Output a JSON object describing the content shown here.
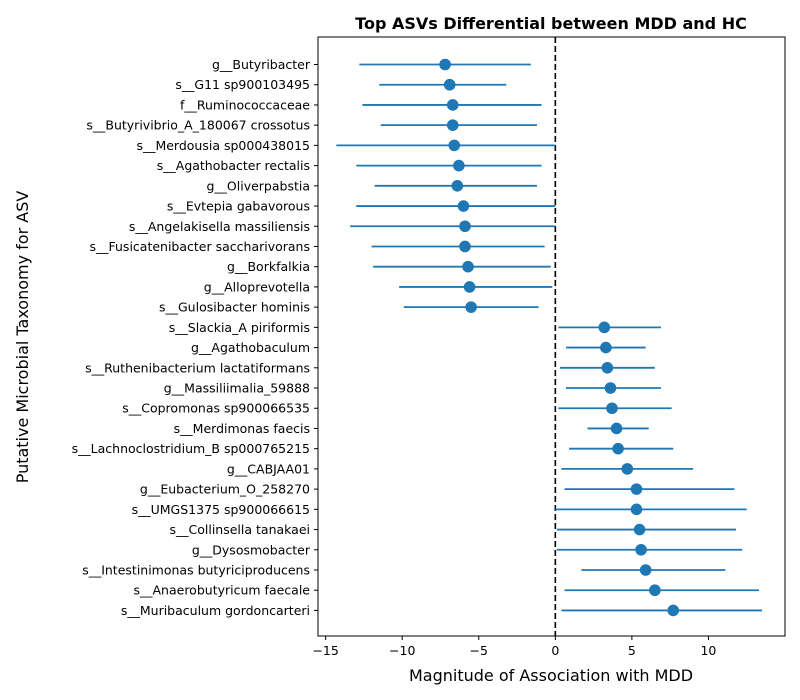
{
  "chart_data": {
    "type": "scatter",
    "title": "Top ASVs Differential between MDD and HC",
    "xlabel": "Magnitude of Association with MDD",
    "ylabel": "Putative Microbial Taxonomy for ASV",
    "xlim": [
      -15.5,
      15
    ],
    "xticks": [
      {
        "value": -15,
        "label": "−15"
      },
      {
        "value": -10,
        "label": "−10"
      },
      {
        "value": -5,
        "label": "−5"
      },
      {
        "value": 0,
        "label": "0"
      },
      {
        "value": 5,
        "label": "5"
      },
      {
        "value": 10,
        "label": "10"
      }
    ],
    "reference_line": {
      "x": 0,
      "style": "dashed",
      "color": "#000000"
    },
    "grid": false,
    "legend": "none",
    "marker_color": "#1f77b4",
    "categories": [
      "g__Butyribacter",
      "s__G11 sp900103495",
      "f__Ruminococcaceae",
      "s__Butyrivibrio_A_180067 crossotus",
      "s__Merdousia sp000438015",
      "s__Agathobacter rectalis",
      "g__Oliverpabstia",
      "s__Evtepia gabavorous",
      "s__Angelakisella massiliensis",
      "s__Fusicatenibacter saccharivorans",
      "g__Borkfalkia",
      "g__Alloprevotella",
      "s__Gulosibacter hominis",
      "s__Slackia_A piriformis",
      "g__Agathobaculum",
      "s__Ruthenibacterium lactatiformans",
      "g__Massiliimalia_59888",
      "s__Copromonas sp900066535",
      "s__Merdimonas faecis",
      "s__Lachnoclostridium_B sp000765215",
      "g__CABJAA01",
      "g__Eubacterium_O_258270",
      "s__UMGS1375 sp900066615",
      "s__Collinsella tanakaei",
      "g__Dysosmobacter",
      "s__Intestinimonas butyriciproducens",
      "s__Anaerobutyricum faecale",
      "s__Muribaculum gordoncarteri"
    ],
    "estimates": [
      -7.2,
      -6.9,
      -6.7,
      -6.7,
      -6.6,
      -6.3,
      -6.4,
      -6.0,
      -5.9,
      -5.9,
      -5.7,
      -5.6,
      -5.5,
      3.2,
      3.3,
      3.4,
      3.6,
      3.7,
      4.0,
      4.1,
      4.7,
      5.3,
      5.3,
      5.5,
      5.6,
      5.9,
      6.5,
      7.7
    ],
    "ci_low": [
      -12.8,
      -11.5,
      -12.6,
      -11.4,
      -14.3,
      -13.0,
      -11.8,
      -13.0,
      -13.4,
      -12.0,
      -11.9,
      -10.2,
      -9.9,
      0.2,
      0.7,
      0.3,
      0.7,
      0.2,
      2.1,
      0.9,
      0.4,
      0.6,
      0.0,
      0.1,
      0.1,
      1.7,
      0.6,
      0.4
    ],
    "ci_high": [
      -1.6,
      -3.2,
      -0.9,
      -1.2,
      0.0,
      -0.9,
      -1.2,
      0.0,
      0.0,
      -0.7,
      -0.3,
      -0.2,
      -1.1,
      6.9,
      5.9,
      6.5,
      6.9,
      7.6,
      6.1,
      7.7,
      9.0,
      11.7,
      12.5,
      11.8,
      12.2,
      11.1,
      13.3,
      13.5
    ]
  }
}
